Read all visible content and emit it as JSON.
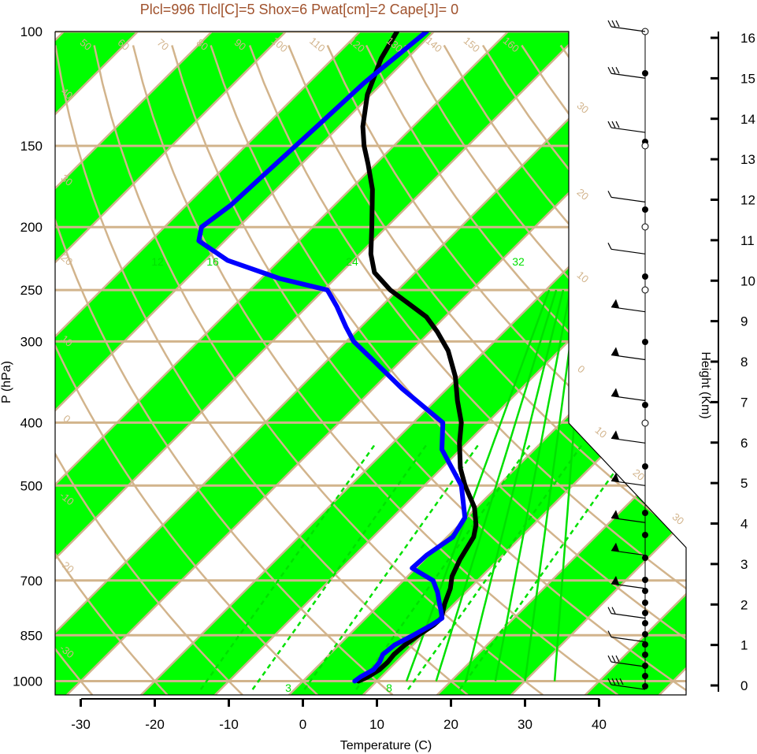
{
  "title": "Plcl=996 Tlcl[C]=5 Shox=6 Pwat[cm]=2 Cape[J]= 0",
  "colors": {
    "band": "#00ff00",
    "isotherm": "#d2b48c",
    "temperature": "#000000",
    "dewpoint": "#0000ff",
    "moist_adiabat": "#00e000",
    "title": "#a0522d"
  },
  "chart_data": {
    "type": "line",
    "subtype": "skew-T log-P sounding",
    "xlabel": "Temperature (C)",
    "ylabel": "P (hPa)",
    "y2label": "Height (Km)",
    "xlim": [
      -34,
      52
    ],
    "ylim": [
      1030,
      100
    ],
    "x_ticks": [
      "-30",
      "-20",
      "-10",
      "0",
      "10",
      "20",
      "30",
      "40"
    ],
    "y_ticks": [
      "100",
      "150",
      "200",
      "250",
      "300",
      "400",
      "500",
      "700",
      "850",
      "1000"
    ],
    "height_ticks": [
      "0",
      "1",
      "2",
      "3",
      "4",
      "5",
      "6",
      "7",
      "8",
      "9",
      "10",
      "11",
      "12",
      "13",
      "14",
      "15",
      "16"
    ],
    "isotherm_labels": [
      "50",
      "60",
      "70",
      "80",
      "90",
      "100",
      "110",
      "120",
      "130",
      "140",
      "150",
      "160",
      "40",
      "30",
      "20",
      "10",
      "0",
      "-10",
      "-20",
      "-30",
      "30",
      "20",
      "10",
      "0",
      "10",
      "20",
      "30"
    ],
    "mixing_ratio_labels": [
      "12",
      "16",
      "24",
      "32",
      "3",
      "8"
    ],
    "series": [
      {
        "name": "",
        "color": "#000000",
        "points": [
          [
            1000,
            7.5
          ],
          [
            985,
            8.2
          ],
          [
            960,
            8.8
          ],
          [
            935,
            8.9
          ],
          [
            910,
            8.7
          ],
          [
            880,
            8.9
          ],
          [
            850,
            9.4
          ],
          [
            820,
            10.1
          ],
          [
            800,
            10.2
          ],
          [
            760,
            8.7
          ],
          [
            720,
            7.4
          ],
          [
            690,
            6.0
          ],
          [
            650,
            4.8
          ],
          [
            600,
            3.6
          ],
          [
            575,
            2.3
          ],
          [
            540,
            -0.3
          ],
          [
            500,
            -4.5
          ],
          [
            470,
            -7.5
          ],
          [
            430,
            -11.0
          ],
          [
            400,
            -13.5
          ],
          [
            370,
            -17.0
          ],
          [
            340,
            -20.5
          ],
          [
            310,
            -25.0
          ],
          [
            290,
            -29.0
          ],
          [
            275,
            -32.5
          ],
          [
            260,
            -37.5
          ],
          [
            250,
            -41.0
          ],
          [
            235,
            -45.5
          ],
          [
            220,
            -48.5
          ],
          [
            200,
            -52.0
          ],
          [
            175,
            -57.0
          ],
          [
            160,
            -61.0
          ],
          [
            150,
            -64.0
          ],
          [
            140,
            -66.8
          ],
          [
            125,
            -70.5
          ],
          [
            110,
            -73.5
          ],
          [
            100,
            -75.0
          ]
        ]
      },
      {
        "name": "",
        "color": "#0000ff",
        "points": [
          [
            1000,
            7.0
          ],
          [
            985,
            7.2
          ],
          [
            960,
            8.0
          ],
          [
            935,
            7.8
          ],
          [
            910,
            7.2
          ],
          [
            880,
            7.5
          ],
          [
            850,
            8.7
          ],
          [
            820,
            9.8
          ],
          [
            800,
            10.3
          ],
          [
            780,
            9.2
          ],
          [
            760,
            8.0
          ],
          [
            730,
            6.2
          ],
          [
            700,
            4.0
          ],
          [
            670,
            -0.5
          ],
          [
            640,
            -0.3
          ],
          [
            600,
            0.8
          ],
          [
            560,
            -0.2
          ],
          [
            500,
            -5.0
          ],
          [
            440,
            -12.5
          ],
          [
            400,
            -16.0
          ],
          [
            355,
            -26.0
          ],
          [
            320,
            -34.0
          ],
          [
            300,
            -39.0
          ],
          [
            285,
            -42.0
          ],
          [
            265,
            -46.0
          ],
          [
            250,
            -49.5
          ],
          [
            240,
            -57.5
          ],
          [
            225,
            -67.0
          ],
          [
            210,
            -73.5
          ],
          [
            200,
            -75.0
          ],
          [
            185,
            -74.0
          ],
          [
            160,
            -73.5
          ],
          [
            140,
            -73.0
          ],
          [
            120,
            -72.5
          ],
          [
            100,
            -71.0
          ]
        ]
      }
    ],
    "wind_barbs": [
      {
        "p": 100,
        "barbs": "3 long + 1 short"
      },
      {
        "p": 118,
        "barbs": "3 long + 1 short"
      },
      {
        "p": 143,
        "barbs": "3 long + 1 short"
      },
      {
        "p": 183,
        "barbs": "1 long"
      },
      {
        "p": 220,
        "barbs": "1 long + 1 short"
      },
      {
        "p": 270,
        "barbs": "flag"
      },
      {
        "p": 320,
        "barbs": "flag"
      },
      {
        "p": 370,
        "barbs": "flag"
      },
      {
        "p": 430,
        "barbs": "flag"
      },
      {
        "p": 500,
        "barbs": "flag"
      },
      {
        "p": 570,
        "barbs": "flag"
      },
      {
        "p": 640,
        "barbs": "flag"
      },
      {
        "p": 720,
        "barbs": "flag"
      },
      {
        "p": 800,
        "barbs": "2 long"
      },
      {
        "p": 870,
        "barbs": "1 long"
      },
      {
        "p": 950,
        "barbs": "3 long"
      },
      {
        "p": 1030,
        "barbs": "4 long"
      }
    ]
  }
}
